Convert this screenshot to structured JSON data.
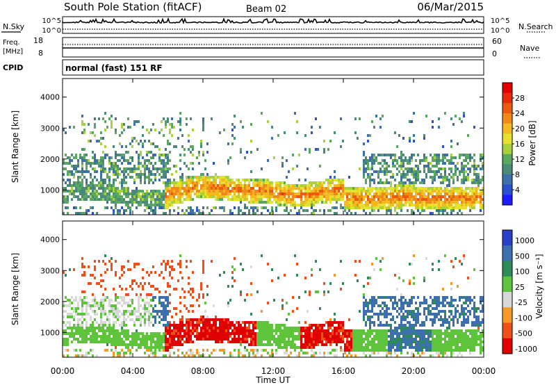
{
  "header": {
    "title": "South Pole Station (fitACF)",
    "beam": "Beam 02",
    "date": "06/Mar/2015"
  },
  "panels": {
    "noise": {
      "left_label": "N.Sky",
      "right_label": "N.Search",
      "left_ticks": [
        "10^5",
        "10^0"
      ],
      "right_ticks": [
        "10^5",
        "10^0"
      ]
    },
    "freq": {
      "left_label_line1": "Freq.",
      "left_label_line2": "[MHz]",
      "right_label": "Nave",
      "left_ticks": [
        "18",
        "8"
      ],
      "right_ticks": [
        "60",
        "0"
      ]
    },
    "cpid": {
      "label": "CPID",
      "text": "normal (fast) 151 RF"
    }
  },
  "colors": {
    "power": [
      "#1c1cff",
      "#2a4fd0",
      "#3d6fa8",
      "#4a8a78",
      "#5aa860",
      "#a8d23c",
      "#e6e030",
      "#f4b820",
      "#f08a18",
      "#ec5a10",
      "#e62a0a",
      "#e00000"
    ],
    "velocity": [
      "#e00000",
      "#f05018",
      "#f49a28",
      "#d8d8d8",
      "#5ec43c",
      "#2f8a5a",
      "#3d6fb0",
      "#2a3fc8"
    ]
  },
  "chart_data": [
    {
      "type": "heatmap",
      "quantity": "Power",
      "ylabel": "Slant Range [km]",
      "yticks": [
        1000,
        2000,
        3000,
        4000
      ],
      "ylim": [
        200,
        4600
      ],
      "xlim_hours": [
        0,
        24
      ],
      "colorbar_label": "Power [dB]",
      "colorbar_ticks": [
        4,
        8,
        12,
        16,
        20,
        24,
        28
      ],
      "colorbar_range": [
        0,
        32
      ]
    },
    {
      "type": "heatmap",
      "quantity": "Velocity",
      "ylabel": "Slant Range [km]",
      "yticks": [
        1000,
        2000,
        3000,
        4000
      ],
      "ylim": [
        200,
        4600
      ],
      "xlim_hours": [
        0,
        24
      ],
      "colorbar_label": "Velocity [m s⁻¹]",
      "colorbar_ticks": [
        "1000",
        "500",
        "100",
        "25",
        "-25",
        "-100",
        "-500",
        "-1000"
      ]
    }
  ],
  "xaxis": {
    "label": "Time UT",
    "ticks": [
      "00:00",
      "04:00",
      "08:00",
      "12:00",
      "16:00",
      "20:00",
      "00:00"
    ]
  }
}
